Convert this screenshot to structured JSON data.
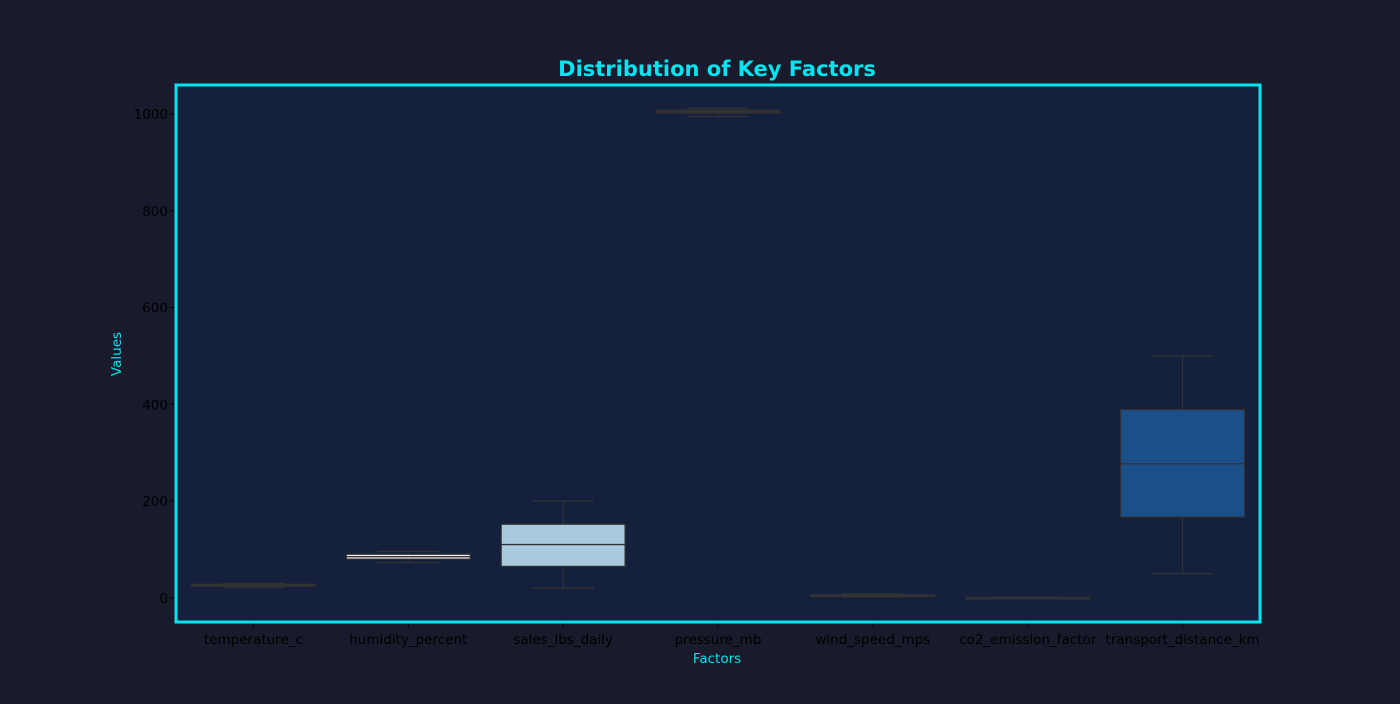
{
  "chart_data": {
    "type": "box",
    "title": "Distribution of Key Factors",
    "xlabel": "Factors",
    "ylabel": "Values",
    "ylim": [
      -50,
      1060
    ],
    "yticks": [
      0,
      200,
      400,
      600,
      800,
      1000
    ],
    "grid": false,
    "categories": [
      "temperature_c",
      "humidity_percent",
      "sales_lbs_daily",
      "pressure_mb",
      "wind_speed_mps",
      "co2_emission_factor",
      "transport_distance_km"
    ],
    "boxes": [
      {
        "min": 22,
        "q1": 24,
        "median": 26,
        "q3": 28,
        "max": 30,
        "fill": "#2b2b2b"
      },
      {
        "min": 73,
        "q1": 80,
        "median": 85,
        "q3": 90,
        "max": 96,
        "fill": "#f4f4f4"
      },
      {
        "min": 20,
        "q1": 65,
        "median": 110,
        "q3": 152,
        "max": 200,
        "fill": "#a8cadc"
      },
      {
        "min": 995,
        "q1": 1002,
        "median": 1005,
        "q3": 1008,
        "max": 1012,
        "fill": "#2b2b2b"
      },
      {
        "min": 2,
        "q1": 4,
        "median": 5,
        "q3": 6,
        "max": 8,
        "fill": "#2b2b2b"
      },
      {
        "min": 0,
        "q1": 0.3,
        "median": 0.5,
        "q3": 0.7,
        "max": 1,
        "fill": "#2b2b2b"
      },
      {
        "min": 50,
        "q1": 167,
        "median": 277,
        "q3": 389,
        "max": 500,
        "fill": "#1b4f8a"
      }
    ]
  },
  "colors": {
    "page_bg": "#191a2c",
    "plot_bg": "#14203c",
    "frame": "#00e5f0",
    "title": "#00e5f0",
    "axis_label": "#00e5f0",
    "tick_label": "#000000",
    "whisker": "#333333"
  }
}
